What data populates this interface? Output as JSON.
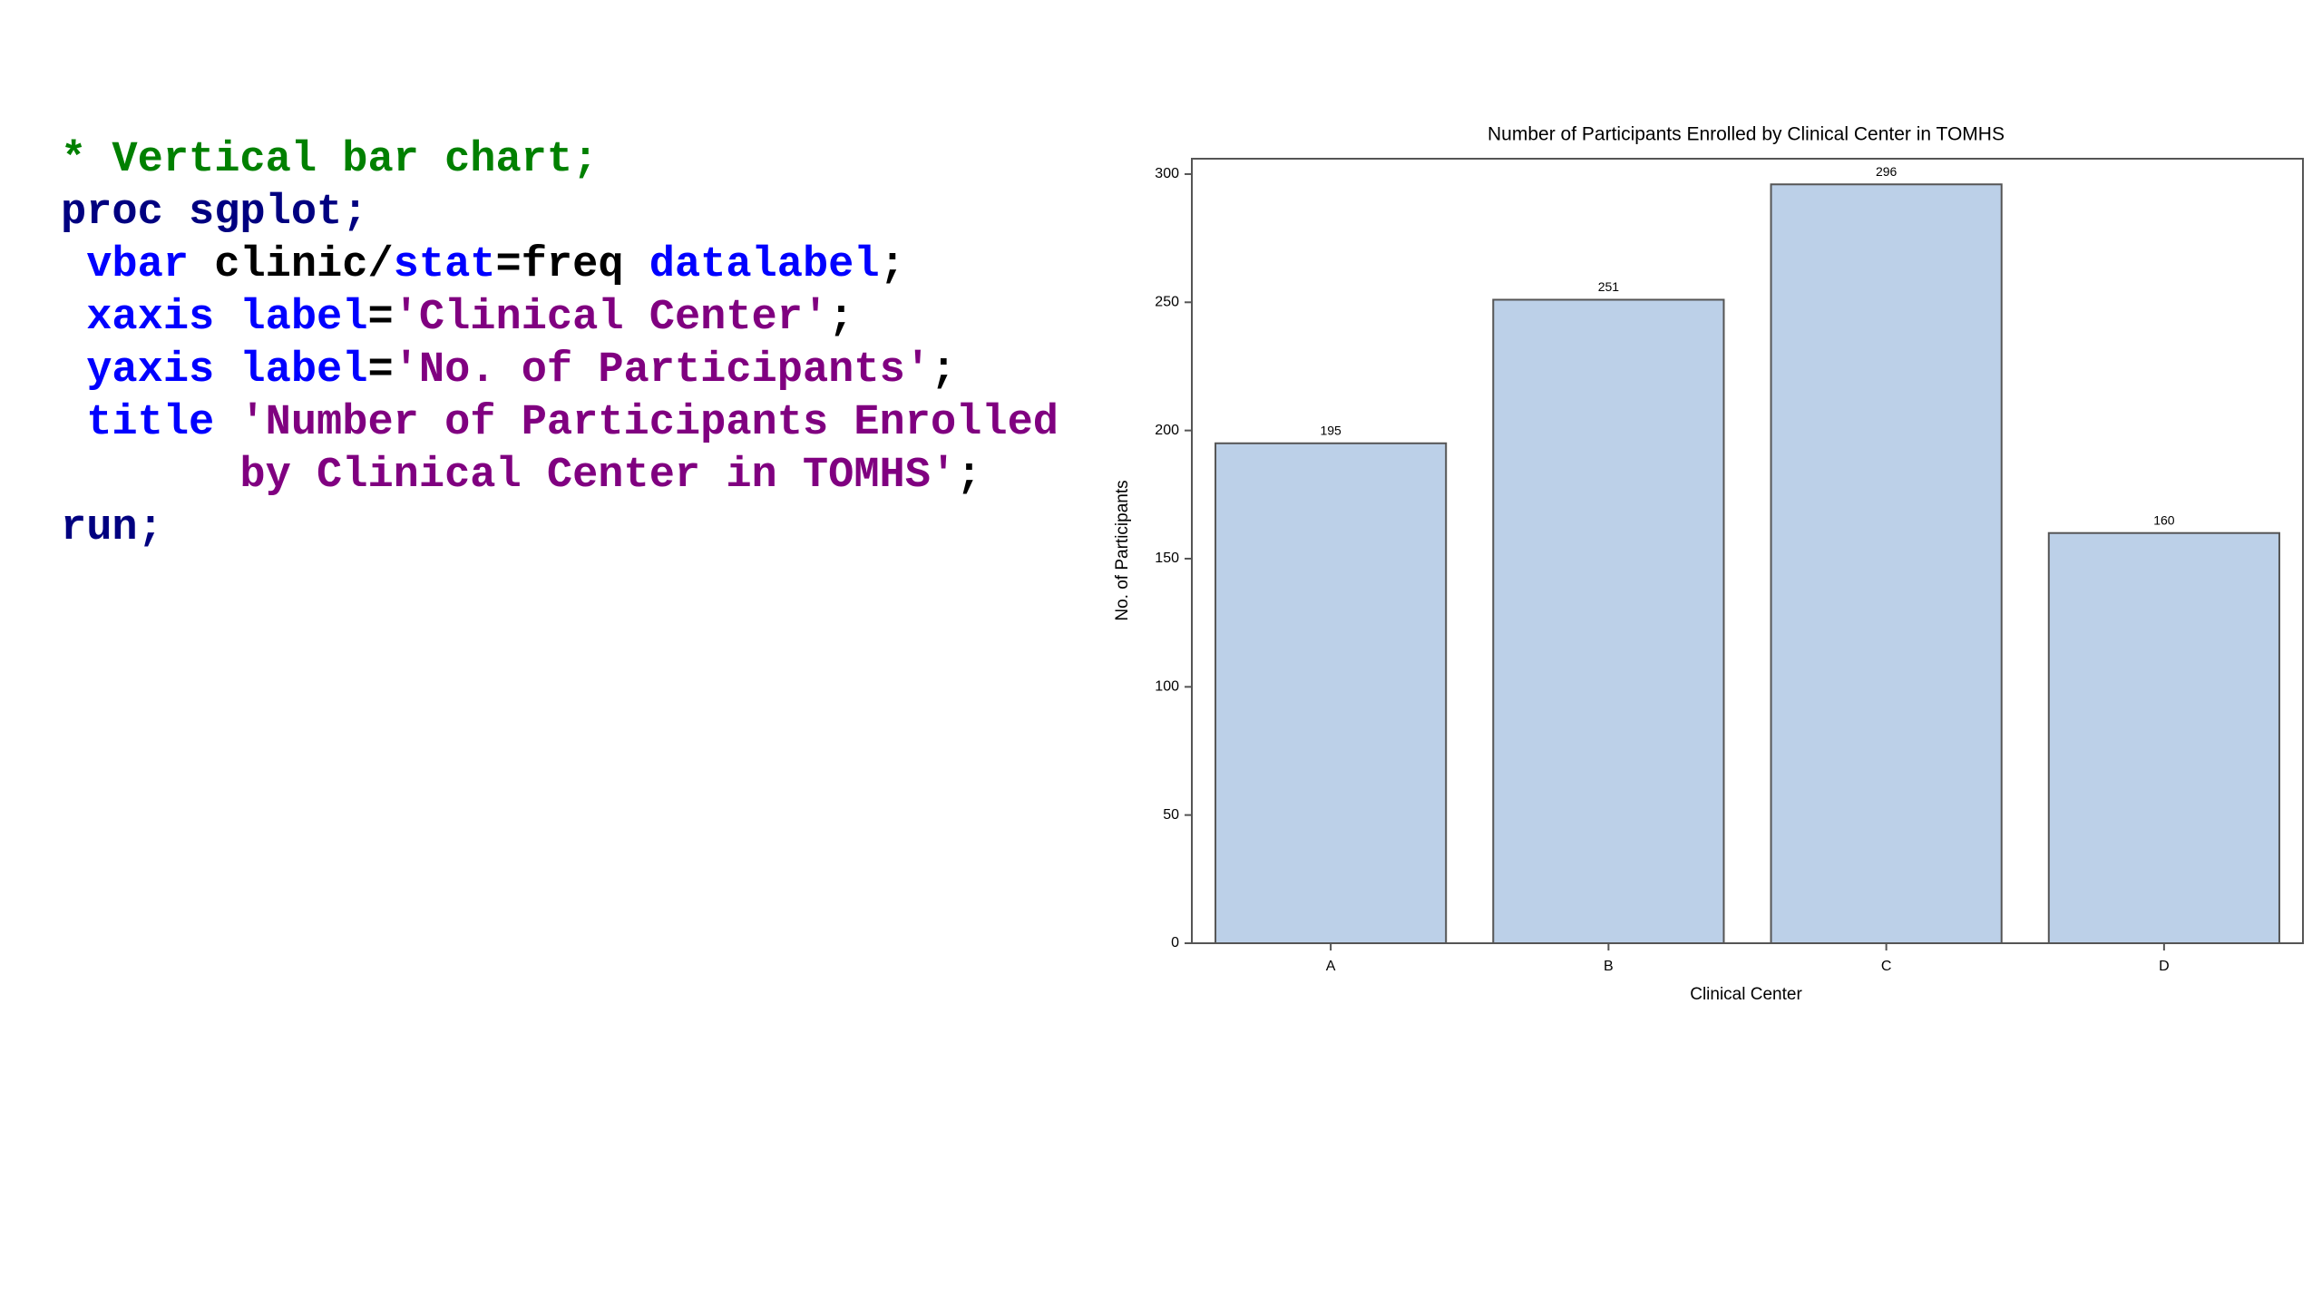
{
  "code": [
    [
      {
        "text": "* Vertical bar chart;",
        "color": "#008000"
      }
    ],
    [
      {
        "text": "proc sgplot;",
        "color": "#000080"
      }
    ],
    [
      {
        "text": " vbar",
        "color": "#0000ff"
      },
      {
        "text": " clinic/",
        "color": "#000000"
      },
      {
        "text": "stat",
        "color": "#0000ff"
      },
      {
        "text": "=freq ",
        "color": "#000000"
      },
      {
        "text": "datalabel",
        "color": "#0000ff"
      },
      {
        "text": ";",
        "color": "#000000"
      }
    ],
    [
      {
        "text": " xaxis label",
        "color": "#0000ff"
      },
      {
        "text": "=",
        "color": "#000000"
      },
      {
        "text": "'Clinical Center'",
        "color": "#800080"
      },
      {
        "text": ";",
        "color": "#000000"
      }
    ],
    [
      {
        "text": " yaxis label",
        "color": "#0000ff"
      },
      {
        "text": "=",
        "color": "#000000"
      },
      {
        "text": "'No. of Participants'",
        "color": "#800080"
      },
      {
        "text": ";",
        "color": "#000000"
      }
    ],
    [
      {
        "text": " title",
        "color": "#0000ff"
      },
      {
        "text": " 'Number of Participants Enrolled",
        "color": "#800080"
      }
    ],
    [
      {
        "text": "       by Clinical Center in TOMHS'",
        "color": "#800080"
      },
      {
        "text": ";",
        "color": "#000000"
      }
    ],
    [
      {
        "text": "run;",
        "color": "#000080"
      }
    ]
  ],
  "chart_data": {
    "type": "bar",
    "title": "Number of Participants Enrolled by Clinical Center in TOMHS",
    "x_label": "Clinical Center",
    "y_label": "No. of Participants",
    "categories": [
      "A",
      "B",
      "C",
      "D"
    ],
    "values": [
      195,
      251,
      296,
      160
    ],
    "color": "#bcd0e8",
    "ylim": [
      0,
      306
    ],
    "yticks": [
      0,
      50,
      100,
      150,
      200,
      250,
      300
    ],
    "grid": false
  }
}
